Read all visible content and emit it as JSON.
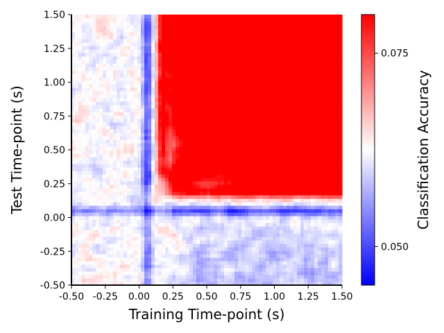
{
  "chart_data": {
    "type": "heatmap",
    "title": "",
    "xlabel": "Training Time-point (s)",
    "ylabel": "Test Time-point (s)",
    "xlim": [
      -0.5,
      1.5
    ],
    "ylim": [
      -0.5,
      1.5
    ],
    "xticks": [
      "-0.50",
      "-0.25",
      "0.00",
      "0.25",
      "0.50",
      "0.75",
      "1.00",
      "1.25",
      "1.50"
    ],
    "yticks": [
      "-0.50",
      "-0.25",
      "0.00",
      "0.25",
      "0.50",
      "0.75",
      "1.00",
      "1.25",
      "1.50"
    ],
    "colorbar": {
      "label": "Classification Accuracy",
      "vmin": 0.045,
      "vmax": 0.08,
      "ticks": [
        "0.050",
        "0.075"
      ],
      "cmap": "bwr",
      "low_color": "#0000ff",
      "mid_color": "#ffffff",
      "high_color": "#ff0000"
    },
    "grid": false,
    "description_of_values": "Temporal generalization matrix: accuracy near chance (~0.0625) before 0 s; strong above-chance block for train and test > 0.2 s (>=0.08, saturated red); below-chance bands near train ~0.07 s and test ~0.05 s."
  }
}
